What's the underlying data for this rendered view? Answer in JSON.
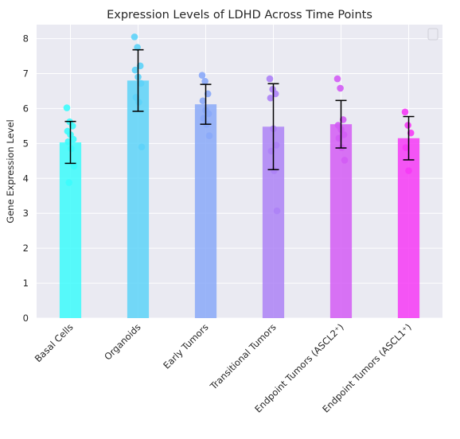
{
  "chart_data": {
    "type": "bar",
    "title": "Expression Levels of LDHD Across Time Points",
    "xlabel": "",
    "ylabel": "Gene Expression Level",
    "ylim": [
      0,
      8.4
    ],
    "yticks": [
      0,
      1,
      2,
      3,
      4,
      5,
      6,
      7,
      8
    ],
    "grid": true,
    "legend": "top-right",
    "categories": [
      "Basal Cells",
      "Organoids",
      "Early Tumors",
      "Transitional Tumors",
      "Endpoint Tumors (ASCL2⁺)",
      "Endpoint Tumors (ASCL1⁺)"
    ],
    "values": [
      5.03,
      6.8,
      6.12,
      5.48,
      5.55,
      5.15
    ],
    "errors": [
      0.6,
      0.88,
      0.57,
      1.23,
      0.68,
      0.62
    ],
    "colors": [
      "#3cfcfc",
      "#5dd3f8",
      "#89a9f8",
      "#ad82f6",
      "#d35cf5",
      "#f63af6"
    ],
    "points": [
      [
        6.02,
        5.62,
        5.5,
        5.35,
        5.25,
        5.12,
        5.05,
        4.85,
        4.35,
        3.88
      ],
      [
        8.05,
        7.75,
        7.22,
        7.1,
        6.9,
        6.72,
        6.32,
        6.18,
        4.9
      ],
      [
        6.95,
        6.78,
        6.42,
        6.22,
        5.95,
        5.85,
        5.72,
        5.55,
        5.22
      ],
      [
        6.85,
        6.55,
        6.42,
        6.3,
        5.42,
        4.95,
        4.78,
        4.22,
        3.07
      ],
      [
        6.85,
        6.58,
        5.68,
        5.52,
        5.4,
        5.25,
        5.15,
        4.88,
        4.52
      ],
      [
        5.9,
        5.52,
        5.3,
        4.88,
        4.22
      ]
    ]
  }
}
